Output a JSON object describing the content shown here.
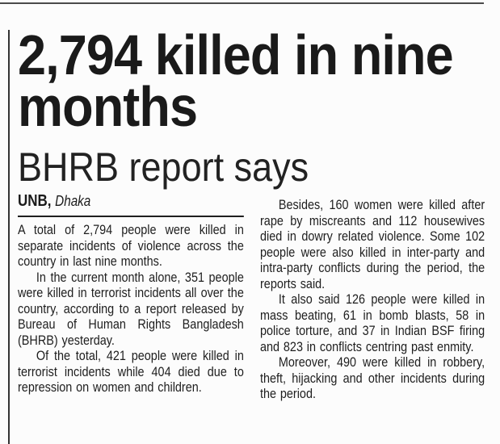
{
  "article": {
    "headline": "2,794 killed in nine months",
    "subheadline": "BHRB report says",
    "byline": {
      "agency": "UNB,",
      "location": "Dhaka"
    },
    "columns": {
      "left": [
        "A total of 2,794 people were killed in separate incidents of violence across the country in last nine months.",
        "In the current month alone, 351 people were killed in terrorist incidents all over the country, according to a report released by Bureau of Human Rights Bangladesh (BHRB) yesterday.",
        "Of the total, 421 people were killed in terrorist incidents while 404 died due to repression on women and children."
      ],
      "right": [
        "Besides, 160 women were killed after rape by miscreants and 112 housewives died in dowry related violence. Some 102 people were also killed in inter-party and intra-party conflicts during the period, the reports said.",
        "It also said 126 people were killed in mass beating, 61 in bomb blasts, 58 in police torture, and 37 in Indian BSF firing and 823 in conflicts centring past enmity.",
        "Moreover, 490 were killed in robbery, theft, hijacking and other incidents during the period."
      ]
    }
  },
  "colors": {
    "background": "#fcfcfc",
    "text": "#1e1e1e",
    "headline_text": "#1a1a1a",
    "top_rule": "#4a4a4a",
    "left_rule": "#333333",
    "byline_rule": "#1f1f1f"
  }
}
